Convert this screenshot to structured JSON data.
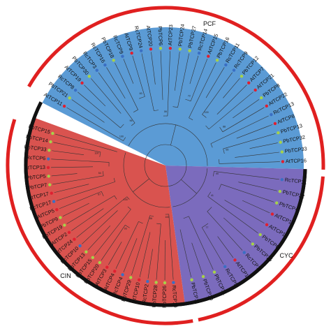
{
  "colors": {
    "pcf": "#5b9bd5",
    "cin": "#d9534f",
    "cyc": "#7b6bbd",
    "outer_ring": "#e02020",
    "inner_ring": "#111111",
    "pb_dot": "#a6d24a",
    "at_dot": "#e02030",
    "rc_dot": "#3a6fc4"
  },
  "clades": {
    "pcf": {
      "label": "PCF"
    },
    "cin": {
      "label": "CIN"
    },
    "cyc": {
      "label": "CYC"
    }
  },
  "leaves": {
    "pcf": [
      "AtTCP11",
      "PbTCP21",
      "RcTCP8",
      "AtTCP19",
      "PbTCP30",
      "RcTCP3",
      "RcTCP16",
      "PbTCP18",
      "RcTCP9",
      "AtTCP9",
      "RcTCP24",
      "AtTCP20",
      "PbTCP6",
      "AtTCP23",
      "PbTCP24",
      "PbTCP27",
      "RcTCP14",
      "AtTCP15",
      "PbTCP16",
      "RcTCP11",
      "RcTCP9",
      "PbTCP12",
      "AtTCP7",
      "AtTCP21",
      "PbTCP8",
      "AtTCP22",
      "RcTCP13",
      "AtTCP8",
      "PbTCP13",
      "PbTCP32",
      "PbTCP33",
      "AtTCP16"
    ],
    "cyc": [
      "RcTCP11",
      "PbTCP22",
      "PbTCP4",
      "AtTCP12",
      "AtTCP18",
      "PbTCP6",
      "PbTCP25",
      "RcTCP1",
      "AtTCP1",
      "RcTCP5",
      "PbTCP31",
      "PbTCP10",
      "PbTCP11"
    ],
    "cin": [
      "RcTCP19",
      "PbTCP26",
      "PbTCP28",
      "RcTCP2",
      "AtTCP10",
      "PbTCP29",
      "RcTCP4",
      "AtTCP4",
      "AtTCP3",
      "PbTCP20",
      "PbTCP15",
      "PbTCP13",
      "RcTCP10",
      "AtTCP24",
      "AtTCP2",
      "PbTCP19",
      "PbTCP9",
      "AtTCP5",
      "RcTCP17",
      "AtTCP17",
      "PbTCP7",
      "PbTCP5",
      "AtTCP13",
      "RcTCP6",
      "PbTCP33",
      "PbTCP14",
      "PbTCP15"
    ]
  },
  "support_values": [
    "100",
    "96",
    "83",
    "59",
    "72",
    "100",
    "88",
    "65",
    "99",
    "41",
    "77",
    "100",
    "58",
    "93",
    "100",
    "67",
    "54",
    "100",
    "82",
    "71",
    "100",
    "95",
    "61",
    "48",
    "100",
    "87",
    "76",
    "63",
    "100",
    "91"
  ]
}
